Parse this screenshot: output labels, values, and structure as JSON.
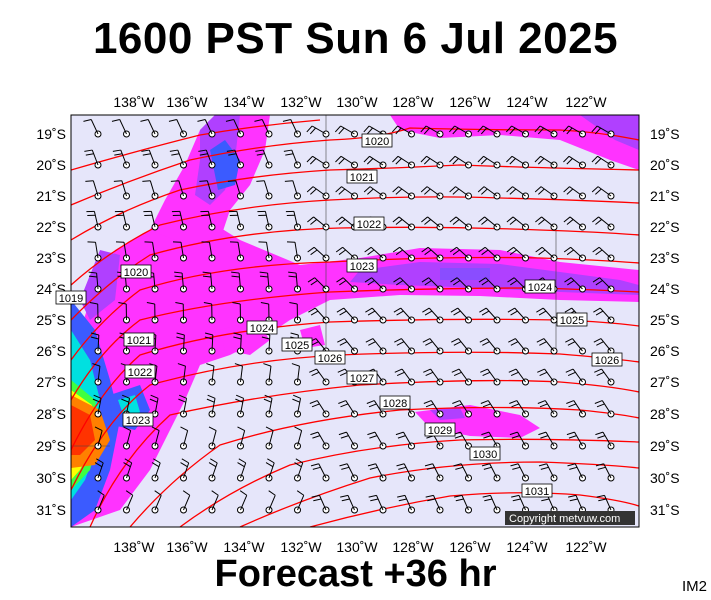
{
  "header": {
    "title": "1600 PST Sun 6 Jul 2025"
  },
  "footer": {
    "forecast": "Forecast +36 hr",
    "code": "IM2"
  },
  "copyright": "Copyright metvuw.com",
  "map": {
    "lon_labels": [
      "138˚W",
      "136˚W",
      "134˚W",
      "132˚W",
      "130˚W",
      "128˚W",
      "126˚W",
      "124˚W",
      "122˚W"
    ],
    "lat_labels": [
      "19˚S",
      "20˚S",
      "21˚S",
      "22˚S",
      "23˚S",
      "24˚S",
      "25˚S",
      "26˚S",
      "27˚S",
      "28˚S",
      "29˚S",
      "30˚S",
      "31˚S"
    ],
    "isobar_labels": [
      "1019",
      "1020",
      "1020",
      "1021",
      "1021",
      "1022",
      "1022",
      "1023",
      "1023",
      "1024",
      "1024",
      "1025",
      "1025",
      "1026",
      "1026",
      "1027",
      "1028",
      "1029",
      "1030",
      "1031"
    ],
    "colors": {
      "ocean": "#e6e6fa",
      "isobar": "#ff0000",
      "rain_light": "#ff33ff",
      "rain_moderate": "#b040ff",
      "rain_heavy": "#3b5bff",
      "rain_very_heavy": "#1e90ff",
      "rain_cyan": "#00e0e0",
      "rain_green": "#40ff40",
      "rain_yellow": "#ffff00",
      "rain_orange": "#ff8000",
      "rain_red": "#ff3300"
    }
  }
}
